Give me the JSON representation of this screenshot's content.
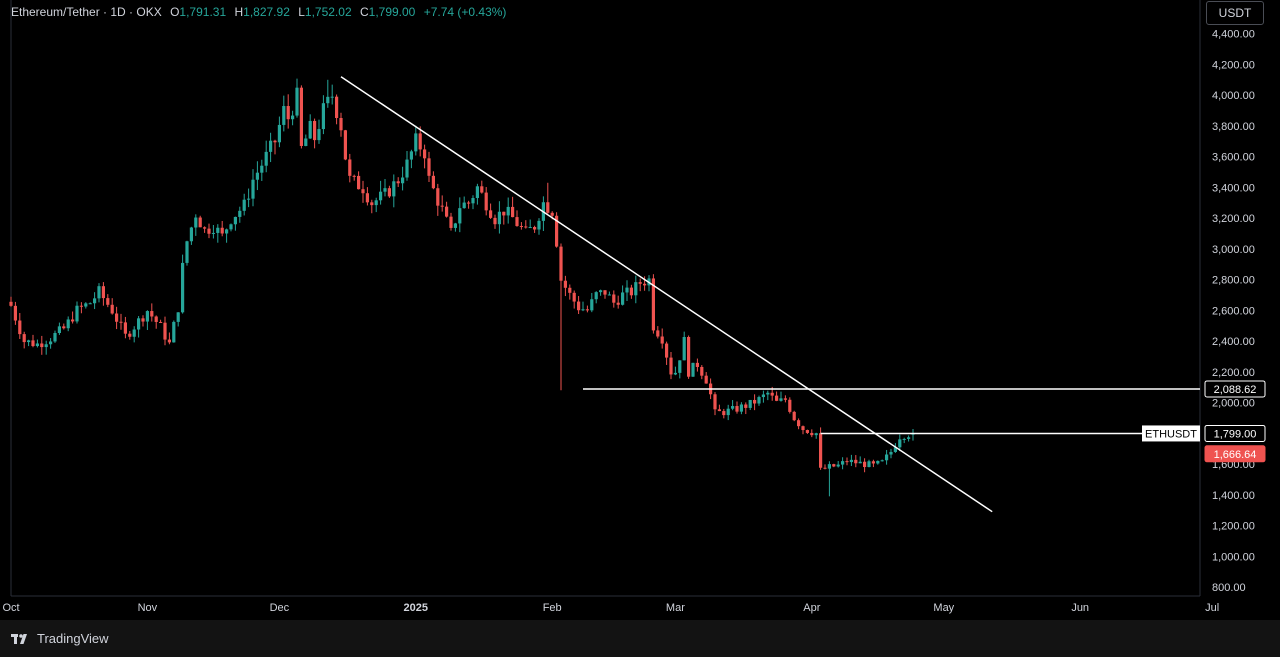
{
  "header": {
    "symbol_title": "Ethereum/Tether · 1D · OKX",
    "ohlc": [
      {
        "k": "O",
        "v": "1,791.31"
      },
      {
        "k": "H",
        "v": "1,827.92"
      },
      {
        "k": "L",
        "v": "1,752.02"
      },
      {
        "k": "C",
        "v": "1,799.00"
      }
    ],
    "change": "+7.74 (+0.43%)"
  },
  "currency_button": "USDT",
  "footer": {
    "brand": "TradingView"
  },
  "colors": {
    "background": "#000000",
    "up": "#26a69a",
    "down": "#ef5350",
    "axis_text": "#d1d4dc",
    "trendline": "#ffffff"
  },
  "chart_data": {
    "type": "candlestick",
    "title": "Ethereum/Tether · 1D · OKX",
    "y_axis": {
      "ticks": [
        800,
        1000,
        1200,
        1400,
        1600,
        1800,
        2000,
        2200,
        2400,
        2600,
        2800,
        3000,
        3200,
        3400,
        3600,
        3800,
        4000,
        4200,
        4400
      ],
      "tick_labels": [
        "800.00",
        "1,000.00",
        "1,200.00",
        "1,400.00",
        "1,600.00",
        "1,800.00",
        "2,000.00",
        "2,200.00",
        "2,400.00",
        "2,600.00",
        "2,800.00",
        "3,000.00",
        "3,200.00",
        "3,400.00",
        "3,600.00",
        "3,800.00",
        "4,000.00",
        "4,200.00",
        "4,400.00"
      ],
      "ylim": [
        800,
        4400
      ]
    },
    "x_axis": {
      "ticks": [
        {
          "label": "Oct",
          "day": 0,
          "bold": false
        },
        {
          "label": "Nov",
          "day": 31,
          "bold": false
        },
        {
          "label": "Dec",
          "day": 61,
          "bold": false
        },
        {
          "label": "2025",
          "day": 92,
          "bold": true
        },
        {
          "label": "Feb",
          "day": 123,
          "bold": false
        },
        {
          "label": "Mar",
          "day": 151,
          "bold": false
        },
        {
          "label": "Apr",
          "day": 182,
          "bold": false
        },
        {
          "label": "May",
          "day": 212,
          "bold": false
        },
        {
          "label": "Jun",
          "day": 243,
          "bold": false
        },
        {
          "label": "Jul",
          "day": 273,
          "bold": false
        }
      ]
    },
    "anchors": [
      [
        0,
        2630
      ],
      [
        3,
        2400
      ],
      [
        6,
        2380
      ],
      [
        9,
        2420
      ],
      [
        12,
        2480
      ],
      [
        15,
        2600
      ],
      [
        18,
        2650
      ],
      [
        20,
        2720
      ],
      [
        23,
        2600
      ],
      [
        26,
        2430
      ],
      [
        29,
        2530
      ],
      [
        31,
        2600
      ],
      [
        34,
        2490
      ],
      [
        36,
        2380
      ],
      [
        38,
        2620
      ],
      [
        39,
        2880
      ],
      [
        40,
        3050
      ],
      [
        42,
        3230
      ],
      [
        44,
        3120
      ],
      [
        46,
        3150
      ],
      [
        48,
        3080
      ],
      [
        50,
        3200
      ],
      [
        53,
        3280
      ],
      [
        55,
        3450
      ],
      [
        58,
        3600
      ],
      [
        60,
        3700
      ],
      [
        62,
        3900
      ],
      [
        63,
        3850
      ],
      [
        65,
        3990
      ],
      [
        66,
        3650
      ],
      [
        68,
        3780
      ],
      [
        69,
        3720
      ],
      [
        71,
        3900
      ],
      [
        73,
        4000
      ],
      [
        75,
        3800
      ],
      [
        76,
        3600
      ],
      [
        77,
        3450
      ],
      [
        80,
        3400
      ],
      [
        82,
        3300
      ],
      [
        85,
        3350
      ],
      [
        88,
        3450
      ],
      [
        90,
        3550
      ],
      [
        92,
        3700
      ],
      [
        94,
        3630
      ],
      [
        95,
        3450
      ],
      [
        98,
        3250
      ],
      [
        100,
        3100
      ],
      [
        102,
        3280
      ],
      [
        104,
        3300
      ],
      [
        106,
        3400
      ],
      [
        108,
        3300
      ],
      [
        110,
        3200
      ],
      [
        112,
        3250
      ],
      [
        114,
        3200
      ],
      [
        117,
        3100
      ],
      [
        119,
        3150
      ],
      [
        121,
        3300
      ],
      [
        123,
        3250
      ],
      [
        124,
        3050
      ],
      [
        125,
        2800
      ],
      [
        127,
        2700
      ],
      [
        129,
        2620
      ],
      [
        131,
        2600
      ],
      [
        133,
        2700
      ],
      [
        135,
        2720
      ],
      [
        137,
        2650
      ],
      [
        139,
        2700
      ],
      [
        141,
        2720
      ],
      [
        143,
        2780
      ],
      [
        145,
        2800
      ],
      [
        146,
        2500
      ],
      [
        148,
        2420
      ],
      [
        150,
        2200
      ],
      [
        151,
        2200
      ],
      [
        153,
        2400
      ],
      [
        154,
        2200
      ],
      [
        156,
        2250
      ],
      [
        158,
        2150
      ],
      [
        159,
        2050
      ],
      [
        160,
        1930
      ],
      [
        162,
        1940
      ],
      [
        164,
        1950
      ],
      [
        166,
        1970
      ],
      [
        168,
        1990
      ],
      [
        170,
        2020
      ],
      [
        172,
        2060
      ],
      [
        174,
        2000
      ],
      [
        176,
        2020
      ],
      [
        178,
        1900
      ],
      [
        180,
        1830
      ],
      [
        181,
        1820
      ],
      [
        183,
        1800
      ],
      [
        184,
        1560
      ],
      [
        186,
        1580
      ],
      [
        188,
        1590
      ],
      [
        190,
        1620
      ],
      [
        192,
        1610
      ],
      [
        194,
        1600
      ],
      [
        196,
        1590
      ],
      [
        198,
        1610
      ],
      [
        200,
        1680
      ],
      [
        202,
        1780
      ],
      [
        203,
        1790
      ],
      [
        205,
        1799
      ]
    ],
    "last_candle": {
      "open": 1791.31,
      "high": 1827.92,
      "low": 1752.02,
      "close": 1799.0
    },
    "trendline": {
      "from": {
        "day": 75,
        "price": 4120
      },
      "to": {
        "day": 223,
        "price": 1290
      }
    },
    "horizontal_line": {
      "price": 2088.62,
      "label": "2,088.62",
      "from_day": 130
    },
    "price_line": {
      "price": 1799.0,
      "label": "1,799.00",
      "symbol": "ETHUSDT",
      "from_day": 184
    },
    "marker": {
      "price": 1666.64,
      "label": "1,666.64"
    }
  }
}
